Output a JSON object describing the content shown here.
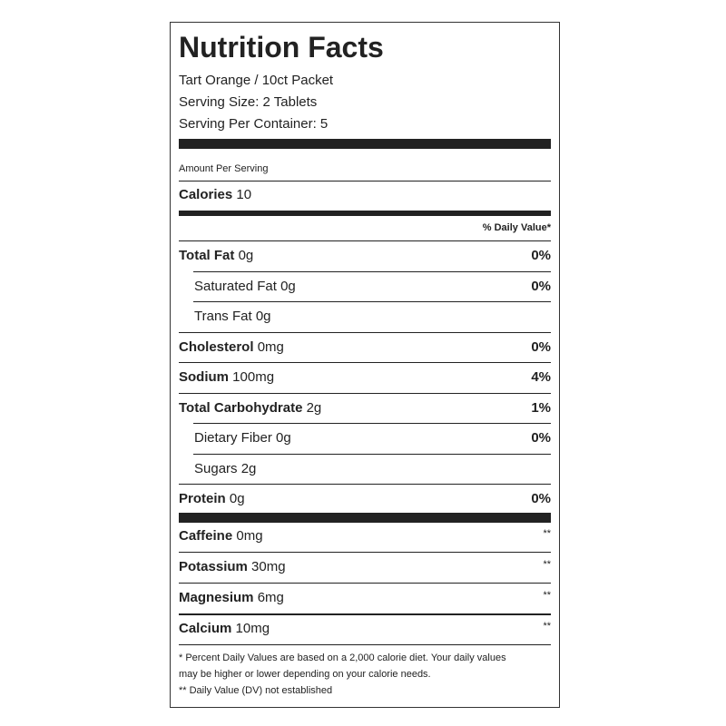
{
  "header": {
    "title": "Nutrition Facts",
    "product": "Tart Orange / 10ct Packet",
    "serving_size": "Serving Size: 2 Tablets",
    "servings": "Serving Per Container: 5"
  },
  "amount_per_serving": "Amount Per Serving",
  "calories": {
    "label": "Calories",
    "value": "10"
  },
  "dv_header": "% Daily Value*",
  "nutrients": [
    {
      "name": "Total Fat",
      "amount": "0g",
      "dv": "0%",
      "sub": [
        {
          "name": "Saturated Fat",
          "amount": "0g",
          "dv": "0%"
        },
        {
          "name": "Trans Fat",
          "amount": "0g"
        }
      ]
    },
    {
      "name": "Cholesterol",
      "amount": "0mg",
      "dv": "0%"
    },
    {
      "name": "Sodium",
      "amount": "100mg",
      "dv": "4%"
    },
    {
      "name": "Total Carbohydrate",
      "amount": "2g",
      "dv": "1%",
      "sub": [
        {
          "name": "Dietary Fiber",
          "amount": "0g",
          "dv": "0%"
        },
        {
          "name": "Sugars",
          "amount": "2g"
        }
      ]
    },
    {
      "name": "Protein",
      "amount": "0g",
      "dv": "0%"
    }
  ],
  "extras": [
    {
      "name": "Caffeine",
      "amount": "0mg",
      "dv": "**"
    },
    {
      "name": "Potassium",
      "amount": "30mg",
      "dv": "**"
    },
    {
      "name": "Magnesium",
      "amount": "6mg",
      "dv": "**"
    },
    {
      "name": "Calcium",
      "amount": "10mg",
      "dv": "**"
    }
  ],
  "footnotes": [
    "* Percent Daily Values are based on a 2,000 calorie diet. Your daily values",
    "may be higher or lower depending on your calorie needs.",
    "** Daily Value (DV) not established"
  ]
}
